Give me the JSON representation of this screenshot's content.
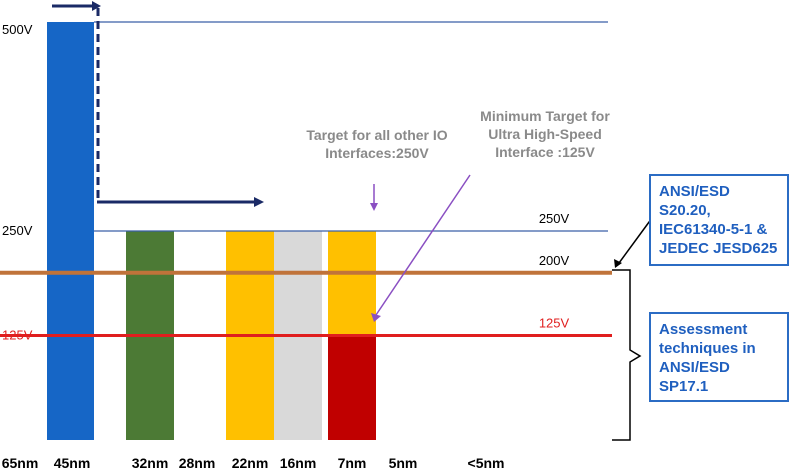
{
  "chart_data": {
    "type": "bar",
    "categories": [
      "65nm",
      "45nm",
      "32nm",
      "28nm",
      "22nm",
      "16nm",
      "7nm",
      "5nm",
      "<5nm"
    ],
    "bars": [
      {
        "from_node": "65nm",
        "to_node": "45nm",
        "value": 500,
        "color": "#1666c6"
      },
      {
        "node": "32nm",
        "value": 250,
        "color": "#4c7a35"
      },
      {
        "node": "22nm",
        "value": 250,
        "color": "#ffc000"
      },
      {
        "node": "16nm",
        "value": 250,
        "color": "#d9d9d9"
      },
      {
        "node": "7nm",
        "value": 250,
        "color": "#ffc000",
        "overlay_value": 125,
        "overlay_color": "#c00000"
      }
    ],
    "y_ticks": [
      {
        "value": 500,
        "label": "500V"
      },
      {
        "value": 250,
        "label": "250V"
      },
      {
        "value": 125,
        "label": "125V"
      }
    ],
    "reference_lines": [
      {
        "value": 500,
        "label": "",
        "color": "#3a5fa8"
      },
      {
        "value": 250,
        "label": "250V",
        "color": "#3a5fa8"
      },
      {
        "value": 200,
        "label": "200V",
        "color": "#c0733a"
      },
      {
        "value": 125,
        "label": "125V",
        "color": "#e01e1e"
      }
    ],
    "ylim": [
      0,
      500
    ],
    "title": "",
    "xlabel": "",
    "ylabel": ""
  },
  "annotations": {
    "target_other_io": "Target for all other IO\nInterfaces:250V",
    "minimum_target": "Minimum Target for\nUltra High-Speed\nInterface :125V"
  },
  "notes": {
    "standards": "ANSI/ESD S20.20,\nIEC61340-5-1 &\nJEDEC JESD625",
    "assessment": "Assessment\ntechniques in\nANSI/ESD SP17.1"
  }
}
